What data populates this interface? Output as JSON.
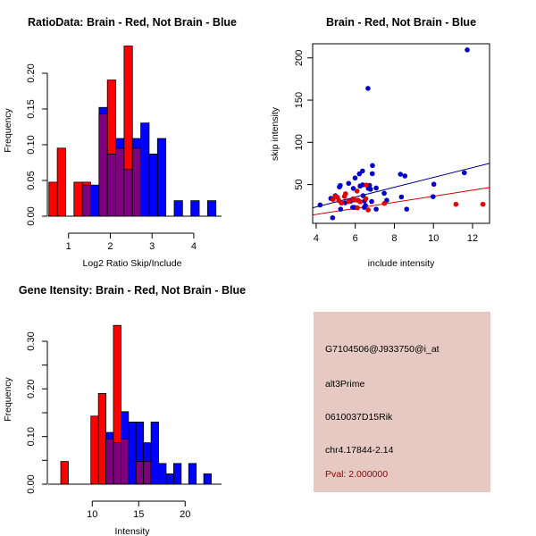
{
  "colors": {
    "brain": "#ff0000",
    "not_brain": "#0000ff",
    "overlap": "#7f007f",
    "bar_border": "#000000",
    "brain_line": "#cc0000",
    "not_brain_line": "#00008b",
    "brain_point": "#e00000",
    "not_brain_point": "#0000cc",
    "panel_bg": "#e5c9c2",
    "pval_text": "#a00000"
  },
  "chart_data": [
    {
      "id": "ratio-histogram",
      "type": "bar",
      "title": "RatioData: Brain - Red, Not Brain - Blue",
      "xlabel": "Log2 Ratio Skip/Include",
      "ylabel": "Frequency",
      "xlim": [
        0.3,
        4.75
      ],
      "ylim": [
        0,
        0.24
      ],
      "xticks": [
        1,
        2,
        3,
        4
      ],
      "xtick_labels": [
        "1",
        "2",
        "3",
        "4"
      ],
      "yticks": [
        0,
        0.05,
        0.1,
        0.15,
        0.2
      ],
      "ytick_labels": [
        "0.00",
        "0.05",
        "0.10",
        "0.15",
        "0.20"
      ],
      "bin_start": 0.53,
      "bin_width": 0.2,
      "series": [
        {
          "name": "Brain",
          "color": "red",
          "values": [
            0.0476,
            0.0952,
            0,
            0.0476,
            0.0476,
            0,
            0.1429,
            0.1905,
            0.0952,
            0.2381,
            0.0952,
            0,
            0,
            0,
            0,
            0,
            0,
            0,
            0,
            0
          ]
        },
        {
          "name": "Not Brain",
          "color": "blue",
          "values": [
            0,
            0,
            0,
            0,
            0.0435,
            0.0435,
            0.1522,
            0.087,
            0.1087,
            0.0652,
            0.1087,
            0.1304,
            0.087,
            0.1087,
            0,
            0.0217,
            0,
            0.0217,
            0,
            0.0217
          ]
        }
      ]
    },
    {
      "id": "intensity-scatter",
      "type": "scatter",
      "title": "Brain - Red, Not Brain - Blue",
      "xlabel": "include intensity",
      "ylabel": "skip intensity",
      "xlim": [
        3.82,
        12.87
      ],
      "ylim": [
        4.1,
        216.7
      ],
      "xticks": [
        4,
        6,
        8,
        10,
        12
      ],
      "xtick_labels": [
        "4",
        "6",
        "8",
        "10",
        "12"
      ],
      "yticks": [
        50,
        100,
        150,
        200
      ],
      "ytick_labels": [
        "50",
        "100",
        "150",
        "200"
      ],
      "series": [
        {
          "name": "Not Brain",
          "color": "blue",
          "points": [
            [
              4.2,
              25.8
            ],
            [
              4.84,
              10.7
            ],
            [
              4.75,
              33.6
            ],
            [
              4.98,
              36.8
            ],
            [
              5.19,
              47.2
            ],
            [
              5.23,
              48.9
            ],
            [
              5.25,
              20.9
            ],
            [
              5.48,
              28.4
            ],
            [
              5.66,
              51.4
            ],
            [
              5.78,
              30.5
            ],
            [
              5.9,
              45.4
            ],
            [
              5.99,
              57.8
            ],
            [
              5.87,
              23
            ],
            [
              5.96,
              23
            ],
            [
              6.21,
              62.7
            ],
            [
              6.25,
              48.3
            ],
            [
              6.13,
              31.4
            ],
            [
              6.37,
              66.1
            ],
            [
              6.4,
              36.8
            ],
            [
              6.38,
              49.7
            ],
            [
              6.47,
              30.5
            ],
            [
              6.52,
              25.2
            ],
            [
              6.46,
              23
            ],
            [
              6.88,
              72.5
            ],
            [
              6.87,
              62.9
            ],
            [
              6.73,
              49
            ],
            [
              6.67,
              45.4
            ],
            [
              6.78,
              44.4
            ],
            [
              6.84,
              29.9
            ],
            [
              7.07,
              45.9
            ],
            [
              7.07,
              20.9
            ],
            [
              7.48,
              39.7
            ],
            [
              7.61,
              31.4
            ],
            [
              8.31,
              62.2
            ],
            [
              8.54,
              60.2
            ],
            [
              8.36,
              35.3
            ],
            [
              8.63,
              20.9
            ],
            [
              10.02,
              50.4
            ],
            [
              9.98,
              35.7
            ],
            [
              11.58,
              64
            ],
            [
              6.65,
              163.9
            ],
            [
              11.73,
              209.5
            ]
          ]
        },
        {
          "name": "Brain",
          "color": "red",
          "points": [
            [
              4.86,
              32.4
            ],
            [
              4.97,
              36
            ],
            [
              5.09,
              34.9
            ],
            [
              5.16,
              31
            ],
            [
              5.29,
              28.2
            ],
            [
              5.45,
              36
            ],
            [
              5.5,
              39.1
            ],
            [
              5.66,
              29.9
            ],
            [
              5.89,
              33.1
            ],
            [
              5.96,
              31.7
            ],
            [
              6.09,
              42.3
            ],
            [
              6.14,
              31.4
            ],
            [
              6.11,
              22.5
            ],
            [
              6.25,
              29.6
            ],
            [
              6.54,
              33.1
            ],
            [
              6.57,
              49.4
            ],
            [
              6.66,
              20
            ],
            [
              7.49,
              27.7
            ],
            [
              11.15,
              26.7
            ],
            [
              12.53,
              26.7
            ]
          ]
        }
      ],
      "regression_lines": [
        {
          "name": "Not Brain fit",
          "color": "blue",
          "x": [
            3.82,
            12.87
          ],
          "y": [
            22.5,
            75.1
          ]
        },
        {
          "name": "Brain fit",
          "color": "red",
          "x": [
            3.82,
            12.87
          ],
          "y": [
            14.0,
            46.5
          ]
        }
      ]
    },
    {
      "id": "gene-intensity-histogram",
      "type": "bar",
      "title": "Gene Itensity: Brain - Red, Not Brain - Blue",
      "xlabel": "Intensity",
      "ylabel": "Frequency",
      "xlim": [
        4.3,
        24.3
      ],
      "ylim": [
        0,
        0.36
      ],
      "xticks": [
        10,
        15,
        20
      ],
      "xtick_labels": [
        "10",
        "15",
        "20"
      ],
      "yticks": [
        0,
        0.1,
        0.2,
        0.3
      ],
      "ytick_labels": [
        "0.00",
        "0.10",
        "0.20",
        "0.30"
      ],
      "minor_yticks": [
        0.05,
        0.15,
        0.25
      ],
      "bin_start": 6.61,
      "bin_width": 0.81,
      "series": [
        {
          "name": "Brain",
          "color": "red",
          "values": [
            0.0476,
            0,
            0,
            0,
            0.1429,
            0.1905,
            0.0952,
            0.3333,
            0.0952,
            0,
            0.0476,
            0.0476,
            0,
            0,
            0,
            0,
            0,
            0,
            0,
            0
          ]
        },
        {
          "name": "Not Brain",
          "color": "blue",
          "values": [
            0,
            0,
            0,
            0,
            0,
            0,
            0.1087,
            0.087,
            0.1522,
            0.1304,
            0.1304,
            0.087,
            0.1304,
            0.0435,
            0.0217,
            0.0435,
            0,
            0.0435,
            0,
            0.0217
          ]
        }
      ]
    }
  ],
  "info_panel": {
    "probe_id": "G7104506@J933750@i_at",
    "event_type": "alt3Prime",
    "gene_name": "0610037D15Rik",
    "location": "chr4.17844-2.14",
    "pval": "Pval: 2.000000"
  }
}
